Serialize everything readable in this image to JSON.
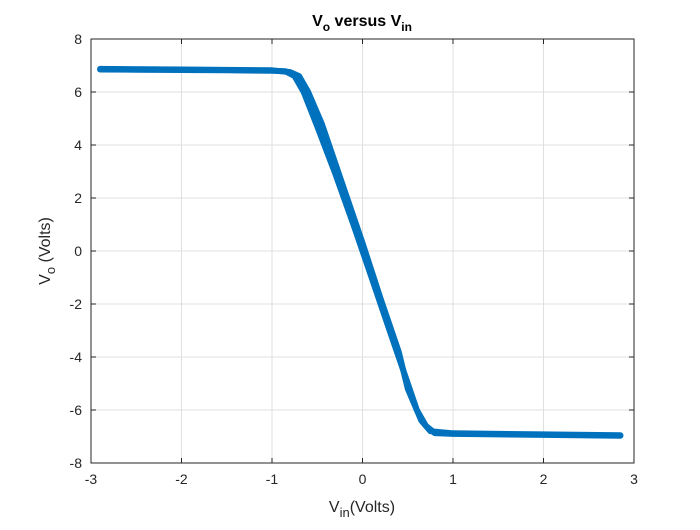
{
  "chart_data": {
    "type": "line",
    "title": {
      "main": "V",
      "main_sub": "o",
      "rest": " versus V",
      "rest_sub": "in"
    },
    "xlabel": {
      "main": "V",
      "sub": "in",
      "rest": "(Volts)"
    },
    "ylabel": {
      "main": "V",
      "sub": "o",
      "rest": " (Volts)"
    },
    "xlim": [
      -3,
      3
    ],
    "ylim": [
      -8,
      8
    ],
    "xticks": [
      -3,
      -2,
      -1,
      0,
      1,
      2,
      3
    ],
    "yticks": [
      -8,
      -6,
      -4,
      -2,
      0,
      2,
      4,
      6,
      8
    ],
    "grid": true,
    "series": [
      {
        "color": "#0072BD",
        "x": [
          -2.9,
          -2.5,
          -2.0,
          -1.5,
          -1.0,
          -0.85,
          -0.75,
          -0.65,
          -0.5,
          -0.3,
          -0.1,
          0.0,
          0.1,
          0.3,
          0.5,
          0.6,
          0.7,
          0.8,
          1.0,
          1.5,
          2.0,
          2.5,
          2.85
        ],
        "y": [
          6.85,
          6.84,
          6.83,
          6.82,
          6.8,
          6.78,
          6.6,
          6.0,
          4.7,
          2.9,
          1.0,
          0.0,
          -1.0,
          -3.0,
          -5.0,
          -6.0,
          -6.6,
          -6.87,
          -6.9,
          -6.92,
          -6.94,
          -6.96,
          -6.97
        ]
      },
      {
        "color": "#0072BD",
        "x": [
          -2.9,
          -2.0,
          -1.0,
          -0.8,
          -0.7,
          -0.6,
          -0.45,
          -0.25,
          0.0,
          0.2,
          0.4,
          0.5,
          0.65,
          0.75,
          1.0,
          2.0,
          2.85
        ],
        "y": [
          6.87,
          6.85,
          6.82,
          6.75,
          6.6,
          6.0,
          4.8,
          2.8,
          0.3,
          -1.8,
          -3.8,
          -5.2,
          -6.4,
          -6.8,
          -6.88,
          -6.92,
          -6.95
        ]
      }
    ]
  }
}
